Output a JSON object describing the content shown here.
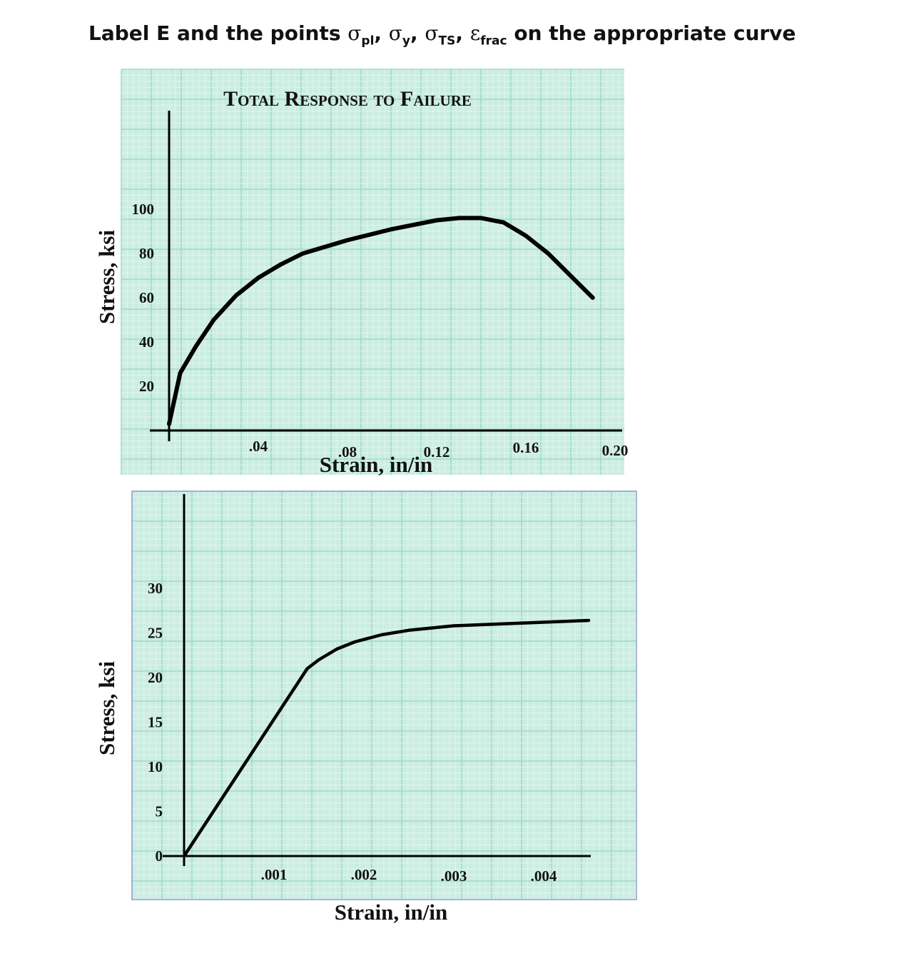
{
  "instruction": {
    "prefix": "Label E and the points ",
    "points": [
      {
        "symbol": "σ",
        "sub": "pl"
      },
      {
        "symbol": "σ",
        "sub": "y"
      },
      {
        "symbol": "σ",
        "sub": "TS"
      },
      {
        "symbol": "ε",
        "sub": "frac"
      }
    ],
    "suffix": " on the appropriate curve"
  },
  "colors": {
    "paper": "#ccede2",
    "grid_minor": "#e7f6f1",
    "grid_major": "#9ddcc7",
    "curve": "#000000",
    "frame_bottom": "#8f9fd6"
  },
  "chart_data": [
    {
      "type": "line",
      "title": "Total Response to Failure",
      "xlabel": "Strain, in/in",
      "ylabel": "Stress, ksi",
      "xlim": [
        0,
        0.2
      ],
      "ylim": [
        0,
        100
      ],
      "x_ticks": [
        {
          "value": 0.04,
          "label": ".04"
        },
        {
          "value": 0.08,
          "label": ".08"
        },
        {
          "value": 0.12,
          "label": "0.12"
        },
        {
          "value": 0.16,
          "label": "0.16"
        },
        {
          "value": 0.2,
          "label": "0.20"
        }
      ],
      "y_ticks": [
        {
          "value": 20,
          "label": "20"
        },
        {
          "value": 40,
          "label": "40"
        },
        {
          "value": 60,
          "label": "60"
        },
        {
          "value": 80,
          "label": "80"
        },
        {
          "value": 100,
          "label": "100"
        }
      ],
      "series": [
        {
          "x": [
            0.0,
            0.005,
            0.012,
            0.02,
            0.03,
            0.04,
            0.05,
            0.06,
            0.08,
            0.1,
            0.12,
            0.13,
            0.14,
            0.15,
            0.16,
            0.17,
            0.18,
            0.185,
            0.19
          ],
          "y": [
            3,
            26,
            38,
            50,
            61,
            69,
            75,
            80,
            86,
            91,
            95,
            96,
            96,
            94,
            88,
            80,
            70,
            65,
            60
          ]
        }
      ]
    },
    {
      "type": "line",
      "title": "",
      "xlabel": "Strain, in/in",
      "ylabel": "Stress, ksi",
      "xlim": [
        0,
        0.0045
      ],
      "ylim": [
        0,
        30
      ],
      "x_ticks": [
        {
          "value": 0.001,
          "label": ".001"
        },
        {
          "value": 0.002,
          "label": ".002"
        },
        {
          "value": 0.003,
          "label": ".003"
        },
        {
          "value": 0.004,
          "label": ".004"
        }
      ],
      "y_ticks": [
        {
          "value": 0,
          "label": "0"
        },
        {
          "value": 5,
          "label": "5"
        },
        {
          "value": 10,
          "label": "10"
        },
        {
          "value": 15,
          "label": "15"
        },
        {
          "value": 20,
          "label": "20"
        },
        {
          "value": 25,
          "label": "25"
        },
        {
          "value": 30,
          "label": "30"
        }
      ],
      "series": [
        {
          "x": [
            0.0,
            0.00137,
            0.0015,
            0.0017,
            0.0019,
            0.0022,
            0.0025,
            0.003,
            0.0035,
            0.004,
            0.0045
          ],
          "y": [
            0,
            21,
            22,
            23.2,
            24,
            24.8,
            25.3,
            25.8,
            26.0,
            26.2,
            26.4
          ]
        }
      ]
    }
  ]
}
